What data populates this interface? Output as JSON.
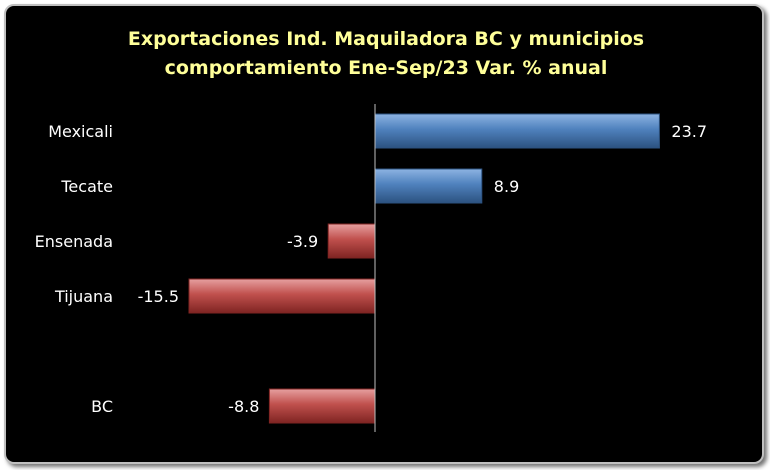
{
  "chart_data": {
    "type": "bar",
    "orientation": "horizontal",
    "title": "Exportaciones Ind. Maquiladora BC y municipios",
    "subtitle": "comportamiento Ene-Sep/23 Var. % anual",
    "categories": [
      "Mexicali",
      "Tecate",
      "Ensenada",
      "Tijuana",
      "BC"
    ],
    "values": [
      23.7,
      8.9,
      -3.9,
      -15.5,
      -8.8
    ],
    "value_labels": [
      "23.7",
      "8.9",
      "-3.9",
      "-15.5",
      "-8.8"
    ],
    "xlim": [
      -30,
      30
    ],
    "grid": false,
    "legend": "none",
    "colors": {
      "background": "#000000",
      "title": "#ffff99",
      "text": "#ffffff",
      "positive_light": "#8db3e2",
      "positive": "#4f81bd",
      "positive_dark": "#2c5280",
      "negative_light": "#e6a0a0",
      "negative": "#c0504d",
      "negative_dark": "#7f2422",
      "axis": "#bfbfbf"
    }
  }
}
